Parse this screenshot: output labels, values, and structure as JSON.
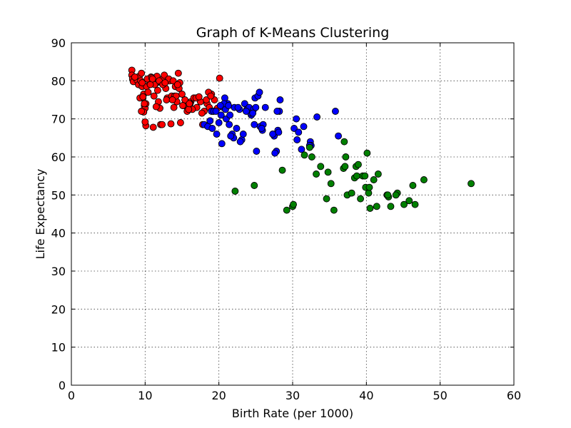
{
  "chart_data": {
    "type": "scatter",
    "title": "Graph of K-Means Clustering",
    "xlabel": "Birth Rate (per 1000)",
    "ylabel": "Life Expectancy",
    "xlim": [
      0,
      60
    ],
    "ylim": [
      0,
      90
    ],
    "xticks": [
      "0",
      "10",
      "20",
      "30",
      "40",
      "50",
      "60"
    ],
    "yticks": [
      "0",
      "10",
      "20",
      "30",
      "40",
      "50",
      "60",
      "70",
      "80",
      "90"
    ],
    "grid": true,
    "series": [
      {
        "color": "#ff0000",
        "x": [
          8.2,
          8.2,
          8.3,
          8.4,
          8.9,
          9.1,
          9.2,
          9.4,
          9.5,
          9.6,
          9.7,
          9.8,
          9.9,
          10.0,
          10.1,
          10.2,
          10.4,
          10.6,
          10.8,
          11.0,
          11.2,
          11.4,
          11.6,
          11.8,
          12.0,
          12.2,
          12.4,
          12.6,
          12.8,
          13.0,
          13.3,
          13.6,
          13.9,
          14.1,
          14.3,
          14.5,
          14.7,
          15.0,
          15.3,
          15.7,
          16.2,
          16.6,
          17.0,
          17.5,
          18.0,
          18.4,
          18.7,
          19.0,
          19.4,
          19.8,
          20.1,
          9.3,
          9.6,
          9.9,
          10.3,
          10.9,
          11.3,
          11.9,
          12.4,
          13.2,
          13.8,
          14.6,
          15.4,
          16.1,
          16.9,
          17.7,
          18.3,
          19.2,
          9.8,
          10.7,
          11.7,
          12.9,
          14.0,
          15.1,
          16.4,
          17.8,
          9.5,
          10.1,
          11.1,
          12.1,
          13.5,
          14.8,
          18.6,
          10.0,
          11.5,
          12.7,
          14.2,
          15.9,
          9.7,
          12.3,
          13.7,
          16.0,
          17.3,
          18.9,
          8.6,
          11.0,
          14.4
        ],
        "y": [
          82.8,
          81.5,
          80.5,
          79.8,
          80.2,
          79.0,
          81.2,
          80.0,
          82.0,
          78.5,
          75.5,
          76.5,
          73.5,
          72.8,
          74.0,
          78.5,
          77.0,
          79.5,
          81.0,
          80.8,
          76.0,
          79.2,
          81.2,
          74.5,
          72.8,
          79.5,
          80.5,
          81.5,
          78.0,
          75.5,
          80.0,
          76.0,
          73.0,
          78.5,
          74.5,
          82.0,
          79.5,
          76.5,
          73.5,
          72.0,
          74.5,
          75.5,
          73.0,
          74.5,
          72.0,
          74.0,
          73.0,
          76.5,
          75.0,
          72.8,
          80.7,
          75.5,
          79.5,
          74.0,
          80.5,
          80.8,
          79.0,
          80.0,
          79.0,
          80.5,
          80.0,
          78.0,
          75.0,
          74.0,
          75.5,
          71.5,
          75.0,
          72.0,
          71.8,
          79.0,
          77.5,
          75.0,
          76.0,
          73.5,
          72.5,
          68.5,
          72.0,
          68.2,
          67.8,
          68.5,
          68.7,
          69.0,
          77.0,
          69.2,
          73.2,
          79.5,
          76.0,
          72.5,
          75.8,
          68.5,
          75.0,
          74.0,
          75.8,
          76.0,
          81.0,
          80.5,
          79.0
        ]
      },
      {
        "color": "#0000ff",
        "x": [
          18.0,
          18.5,
          18.8,
          19.0,
          19.3,
          19.7,
          20.0,
          20.3,
          20.6,
          20.8,
          21.0,
          21.2,
          21.5,
          21.8,
          22.1,
          22.4,
          22.8,
          23.1,
          23.5,
          23.8,
          24.1,
          24.4,
          24.7,
          24.9,
          25.1,
          25.3,
          25.6,
          25.9,
          26.3,
          27.5,
          27.8,
          28.0,
          28.2,
          30.2,
          30.5,
          30.8,
          31.5,
          32.4,
          32.5,
          33.3,
          35.8,
          36.2,
          19.1,
          19.6,
          20.4,
          20.9,
          21.4,
          22.0,
          22.6,
          23.3,
          24.3,
          25.0,
          25.5,
          26.0,
          27.6,
          28.1,
          31.2,
          20.7,
          21.3,
          23.7,
          24.8,
          25.8,
          27.3,
          28.3,
          30.6,
          32.3,
          21.6,
          20.2,
          22.9,
          24.6,
          27.9
        ],
        "y": [
          68.5,
          68.0,
          69.5,
          72.0,
          72.0,
          66.0,
          69.0,
          71.0,
          73.0,
          75.5,
          70.0,
          74.0,
          71.0,
          66.0,
          73.0,
          67.5,
          72.5,
          64.5,
          74.0,
          72.5,
          73.0,
          71.0,
          72.5,
          75.5,
          61.5,
          76.0,
          68.0,
          67.0,
          73.0,
          65.5,
          61.5,
          67.0,
          72.0,
          67.5,
          70.0,
          66.5,
          68.0,
          64.0,
          63.0,
          70.5,
          72.0,
          65.5,
          67.5,
          72.0,
          63.5,
          72.5,
          68.5,
          65.0,
          73.0,
          66.0,
          71.5,
          73.0,
          77.0,
          68.5,
          61.0,
          66.5,
          62.0,
          74.0,
          73.5,
          72.0,
          68.5,
          67.5,
          66.0,
          75.0,
          64.5,
          63.0,
          65.5,
          73.5,
          64.0,
          71.5,
          72.0
        ]
      },
      {
        "color": "#008000",
        "x": [
          22.2,
          24.8,
          28.6,
          29.2,
          30.0,
          30.1,
          31.6,
          32.6,
          33.2,
          33.8,
          34.6,
          34.8,
          35.2,
          35.6,
          36.9,
          37.0,
          37.2,
          37.4,
          38.0,
          38.4,
          38.6,
          38.9,
          39.2,
          39.5,
          39.9,
          40.1,
          40.3,
          40.5,
          41.0,
          41.4,
          41.6,
          42.8,
          43.0,
          43.3,
          44.2,
          45.1,
          45.8,
          46.3,
          46.6,
          47.8,
          54.2,
          32.3,
          37.1,
          38.7,
          39.8,
          40.4,
          42.9,
          44.0
        ],
        "y": [
          51.0,
          52.5,
          56.5,
          46.0,
          47.0,
          47.5,
          60.5,
          60.0,
          55.5,
          57.5,
          49.0,
          56.0,
          53.0,
          46.0,
          57.0,
          64.0,
          60.0,
          50.0,
          50.5,
          54.5,
          57.5,
          58.0,
          49.0,
          55.0,
          52.0,
          61.0,
          50.5,
          46.5,
          54.0,
          47.0,
          55.5,
          50.0,
          49.5,
          47.0,
          50.5,
          47.5,
          48.5,
          52.5,
          47.5,
          54.0,
          53.0,
          62.5,
          57.5,
          55.0,
          55.0,
          52.0,
          50.0,
          50.0
        ]
      }
    ]
  }
}
